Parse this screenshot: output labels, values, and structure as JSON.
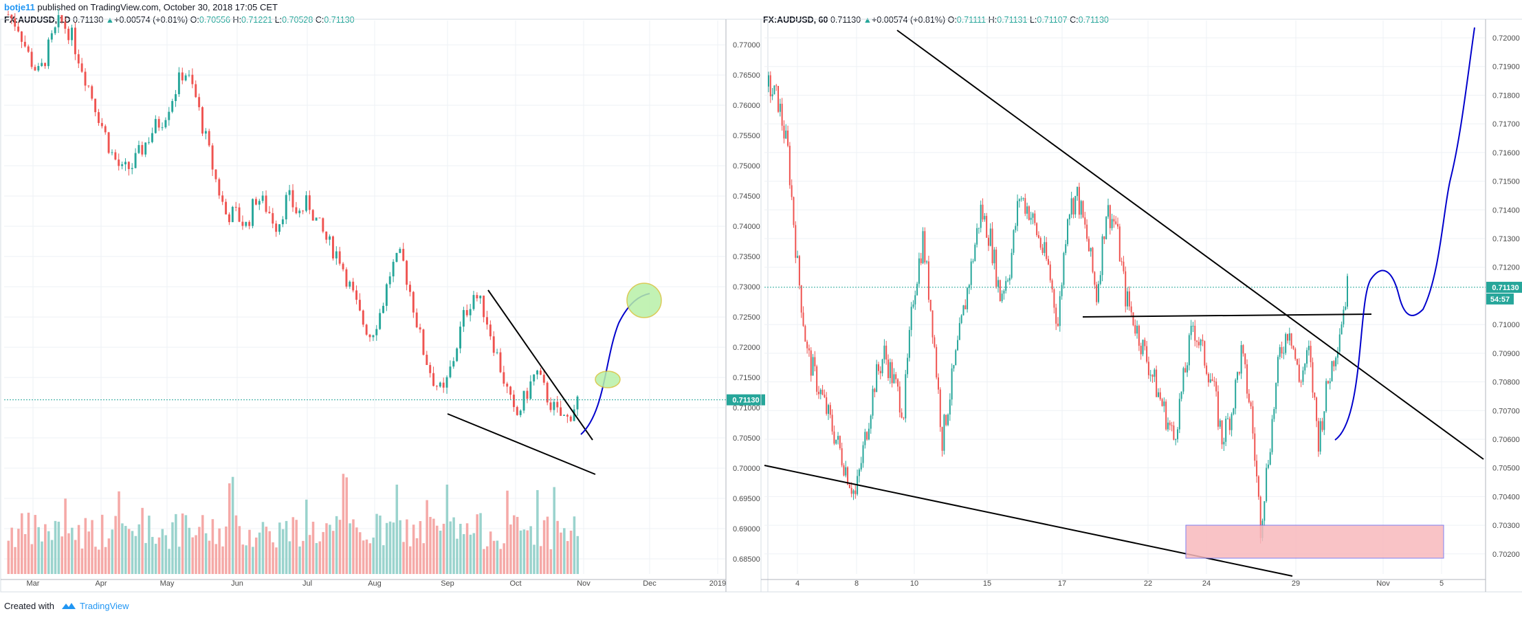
{
  "header": {
    "author": "botje11",
    "published": "published on TradingView.com, October 30, 2018 17:05 CET"
  },
  "left_legend": {
    "symbol": "FX:AUDUSD, 1D",
    "last": "0.71130",
    "change": "+0.00574 (+0.81%)",
    "o_label": "O:",
    "o": "0.70556",
    "h_label": "H:",
    "h": "0.71221",
    "l_label": "L:",
    "l": "0.70528",
    "c_label": "C:",
    "c": "0.71130"
  },
  "right_legend": {
    "symbol": "FX:AUDUSD, 60",
    "last": "0.71130",
    "change": "+0.00574 (+0.81%)",
    "o_label": "O:",
    "o": "0.71111",
    "h_label": "H:",
    "h": "0.71131",
    "l_label": "L:",
    "l": "0.71107",
    "c_label": "C:",
    "c": "0.71130"
  },
  "footer": {
    "created_with": "Created with",
    "brand": "TradingView"
  },
  "colors": {
    "up": "#26a69a",
    "down": "#ef5350",
    "blue_projection": "#0000cc",
    "grid": "#eef1f5"
  },
  "chart_data": [
    {
      "type": "candlestick",
      "timeframe": "1D",
      "x_ticks": [
        "Mar",
        "Apr",
        "May",
        "Jun",
        "Jul",
        "Aug",
        "Sep",
        "Oct",
        "Nov",
        "Dec",
        "2019"
      ],
      "y_ticks": [
        "0.77000",
        "0.76500",
        "0.76000",
        "0.75500",
        "0.75000",
        "0.74500",
        "0.74000",
        "0.73500",
        "0.73000",
        "0.72500",
        "0.72000",
        "0.71500",
        "0.71000",
        "0.70500",
        "0.70000",
        "0.69500",
        "0.69000",
        "0.68500"
      ],
      "ylim": [
        0.6825,
        0.774
      ],
      "last_price_label": "0.71130",
      "close_path": [
        0.775,
        0.773,
        0.768,
        0.765,
        0.77,
        0.774,
        0.772,
        0.767,
        0.762,
        0.757,
        0.752,
        0.749,
        0.75,
        0.753,
        0.756,
        0.758,
        0.762,
        0.766,
        0.762,
        0.755,
        0.748,
        0.742,
        0.742,
        0.74,
        0.745,
        0.743,
        0.74,
        0.745,
        0.742,
        0.744,
        0.74,
        0.737,
        0.735,
        0.73,
        0.725,
        0.722,
        0.726,
        0.733,
        0.735,
        0.728,
        0.72,
        0.715,
        0.712,
        0.718,
        0.725,
        0.729,
        0.726,
        0.72,
        0.714,
        0.708,
        0.712,
        0.716,
        0.712,
        0.709,
        0.708,
        0.7113
      ],
      "volume_shown": true,
      "annotations": [
        "descending wedge trendlines",
        "blue projection curve",
        "green target ellipses at ~0.7145 and ~0.730"
      ]
    },
    {
      "type": "candlestick",
      "timeframe": "60",
      "x_ticks": [
        "4",
        "8",
        "10",
        "15",
        "17",
        "22",
        "24",
        "29",
        "Nov",
        "5"
      ],
      "y_ticks": [
        "0.72000",
        "0.71900",
        "0.71800",
        "0.71700",
        "0.71600",
        "0.71500",
        "0.71400",
        "0.71300",
        "0.71200",
        "0.71000",
        "0.70900",
        "0.70800",
        "0.70700",
        "0.70600",
        "0.70500",
        "0.70400",
        "0.70300",
        "0.70200"
      ],
      "ylim": [
        0.7013,
        0.7206
      ],
      "last_price_label": "0.71130",
      "countdown_label": "54:57",
      "close_path": [
        0.7183,
        0.7178,
        0.716,
        0.712,
        0.709,
        0.708,
        0.707,
        0.706,
        0.705,
        0.704,
        0.706,
        0.708,
        0.709,
        0.708,
        0.707,
        0.711,
        0.713,
        0.71,
        0.706,
        0.708,
        0.71,
        0.712,
        0.714,
        0.713,
        0.711,
        0.712,
        0.7145,
        0.714,
        0.713,
        0.712,
        0.71,
        0.714,
        0.7145,
        0.713,
        0.711,
        0.714,
        0.7135,
        0.711,
        0.71,
        0.709,
        0.708,
        0.707,
        0.706,
        0.708,
        0.71,
        0.709,
        0.708,
        0.706,
        0.707,
        0.709,
        0.707,
        0.703,
        0.706,
        0.709,
        0.71,
        0.708,
        0.709,
        0.706,
        0.708,
        0.7095,
        0.7113
      ],
      "support_zone": [
        0.7025,
        0.703
      ],
      "annotations": [
        "descending trendline",
        "horizontal neckline ~0.7105",
        "lower trendline",
        "blue projection curve",
        "red demand zone box"
      ]
    }
  ]
}
